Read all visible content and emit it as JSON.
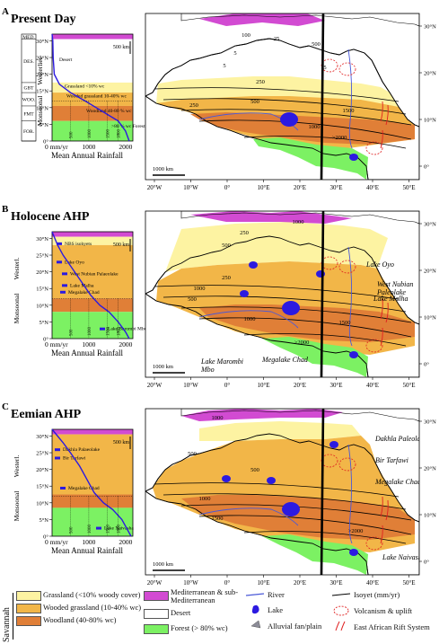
{
  "colors": {
    "med": "#d24bd2",
    "desert": "#ffffff",
    "grassland": "#fdf3a2",
    "wooded": "#f2b648",
    "woodland": "#e07f37",
    "forest": "#7cf163",
    "lake": "#2c1ae0",
    "river": "#4a59d8",
    "alluvial": "#8c8c98",
    "rainfall_curve": "#2c1ae0"
  },
  "panels": [
    {
      "letter": "A",
      "title": "Present Day",
      "zone_bar": [
        "MED.",
        "DES.",
        "GBT",
        "WOO.",
        "FMT",
        "FOR."
      ],
      "westerlies": "Westerlies",
      "monsoonal": "Monsoonal",
      "lat_ticks": [
        "30°N",
        "25°N",
        "20°N",
        "15°N",
        "10°N",
        "5°N",
        "0°"
      ],
      "scale": "500 km",
      "zone_labels": [
        "Desert",
        "Grassland <10% wc",
        "Wooded grassland 10-40% wc",
        "Woodland 40-80 % wc",
        ">80 % wc Forest"
      ],
      "rain_ticks": [
        "500",
        "1000",
        "1500",
        "1800"
      ],
      "x_labels": [
        "0 mm/yr",
        "1000",
        "2000"
      ],
      "axis_title": "Mean Annual Rainfall",
      "isohyets": [
        "5",
        "25",
        "100",
        "250",
        "250",
        "500",
        "1000",
        "1500",
        ">2000",
        "500",
        "5",
        "5"
      ],
      "map_scale": "1000 km",
      "lon_ticks": [
        "20°W",
        "10°W",
        "0°",
        "10°E",
        "20°E",
        "30°E",
        "40°E",
        "50°E"
      ],
      "right_lat": [
        "30°N",
        "20°N",
        "10°N",
        "0°"
      ]
    },
    {
      "letter": "B",
      "title": "Holocene AHP",
      "westerlies": "Westerl.",
      "monsoonal": "Monsoonal",
      "lat_ticks": [
        "30°N",
        "25°N",
        "20°N",
        "15°N",
        "10°N",
        "5°N",
        "0°"
      ],
      "scale": "500 km",
      "lakes": [
        "NBS isohyets",
        "Lake Oyo",
        "West Nubian Palaeolake",
        "Lake Malha",
        "Megalake Chad",
        "Lake Barombi Mbo"
      ],
      "rain_ticks": [
        "500",
        "1000",
        "1500",
        "1800"
      ],
      "x_labels": [
        "0 mm/yr",
        "1000",
        "2000"
      ],
      "axis_title": "Mean Annual Rainfall",
      "isohyets": [
        "1000",
        "250",
        "500",
        "1000",
        "250",
        "500",
        "1000",
        "1500",
        ">2000"
      ],
      "map_labels": [
        "Lake Oyo",
        "West Nubian Paleolake",
        "Lake Malha",
        "Lake Marombi Mbo",
        "Megalake Chad"
      ],
      "map_scale": "1000 km",
      "lon_ticks": [
        "20°W",
        "10°W",
        "0°",
        "10°E",
        "20°E",
        "30°E",
        "40°E",
        "50°E"
      ],
      "right_lat": [
        "30°N",
        "20°N",
        "10°N",
        "0°"
      ]
    },
    {
      "letter": "C",
      "title": "Eemian AHP",
      "westerlies": "Westerl.",
      "monsoonal": "Monsoonal",
      "lat_ticks": [
        "30°N",
        "25°N",
        "20°N",
        "15°N",
        "10°N",
        "5°N",
        "0°"
      ],
      "scale": "500 km",
      "lakes": [
        "Dakhla Palaeolake",
        "Bir Tarfawi",
        "Megalake Chad",
        "Lake Naivasha"
      ],
      "rain_ticks": [
        "500",
        "1000",
        "1500",
        "1800"
      ],
      "x_labels": [
        "0 mm/yr",
        "1000",
        "2000"
      ],
      "axis_title": "Mean Annual Rainfall",
      "isohyets": [
        "1000",
        "500",
        "500",
        "1000",
        "1500",
        ">2000"
      ],
      "map_labels": [
        "Dakhla Paleolake",
        "Bir Tarfawi",
        "Megalake Chad",
        "Lake Naivasha"
      ],
      "map_scale": "1000 km",
      "lon_ticks": [
        "20°W",
        "10°W",
        "0°",
        "10°E",
        "20°E",
        "30°E",
        "40°E",
        "50°E"
      ],
      "right_lat": [
        "30°N",
        "20°N",
        "10°N",
        "0°"
      ]
    }
  ],
  "legend": {
    "savannah": "Savannah",
    "grassland": "Grassland (<10% woody cover)",
    "wooded": "Wooded grassland (10-40% wc)",
    "woodland": "Woodland (40-80% wc)",
    "med": "Mediterranean & sub-Mediterranean",
    "desert": "Desert",
    "forest": "Forest (> 80% wc)",
    "river": "River",
    "lake": "Lake",
    "alluvial": "Alluvial fan/plain",
    "isoyet": "Isoyet (mm/yr)",
    "volcanism": "Volcanism & uplift",
    "rift": "East African Rift System"
  }
}
